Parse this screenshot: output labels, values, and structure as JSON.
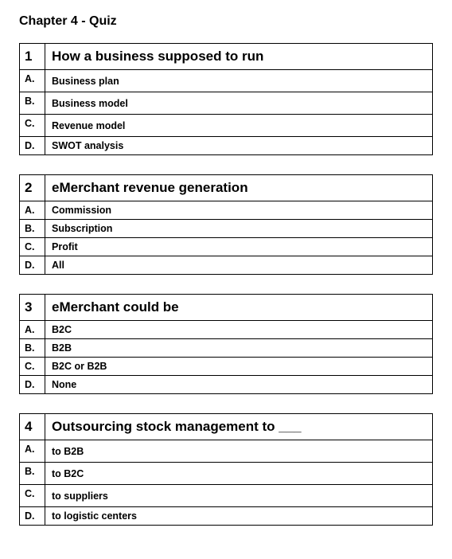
{
  "title": "Chapter 4 - Quiz",
  "questions": [
    {
      "number": "1",
      "prompt": "How a business supposed to run",
      "options": [
        {
          "label": "A.",
          "text": "Business plan",
          "tall": true
        },
        {
          "label": "B.",
          "text": "Business model",
          "tall": true
        },
        {
          "label": "C.",
          "text": "Revenue model",
          "tall": true
        },
        {
          "label": "D.",
          "text": "SWOT analysis",
          "tall": false
        }
      ]
    },
    {
      "number": "2",
      "prompt": "eMerchant revenue generation",
      "options": [
        {
          "label": "A.",
          "text": "Commission",
          "tall": false
        },
        {
          "label": "B.",
          "text": "Subscription",
          "tall": false
        },
        {
          "label": "C.",
          "text": "Profit",
          "tall": false
        },
        {
          "label": "D.",
          "text": "All",
          "tall": false
        }
      ]
    },
    {
      "number": "3",
      "prompt": "eMerchant could be",
      "options": [
        {
          "label": "A.",
          "text": "B2C",
          "tall": false
        },
        {
          "label": "B.",
          "text": "B2B",
          "tall": false
        },
        {
          "label": "C.",
          "text": "B2C or B2B",
          "tall": false
        },
        {
          "label": "D.",
          "text": "None",
          "tall": false
        }
      ]
    },
    {
      "number": "4",
      "prompt": "Outsourcing stock management to ___",
      "options": [
        {
          "label": "A.",
          "text": "to B2B",
          "tall": true
        },
        {
          "label": "B.",
          "text": "to B2C",
          "tall": true
        },
        {
          "label": "C.",
          "text": "to suppliers",
          "tall": true
        },
        {
          "label": "D.",
          "text": "to logistic centers",
          "tall": false
        }
      ]
    }
  ]
}
